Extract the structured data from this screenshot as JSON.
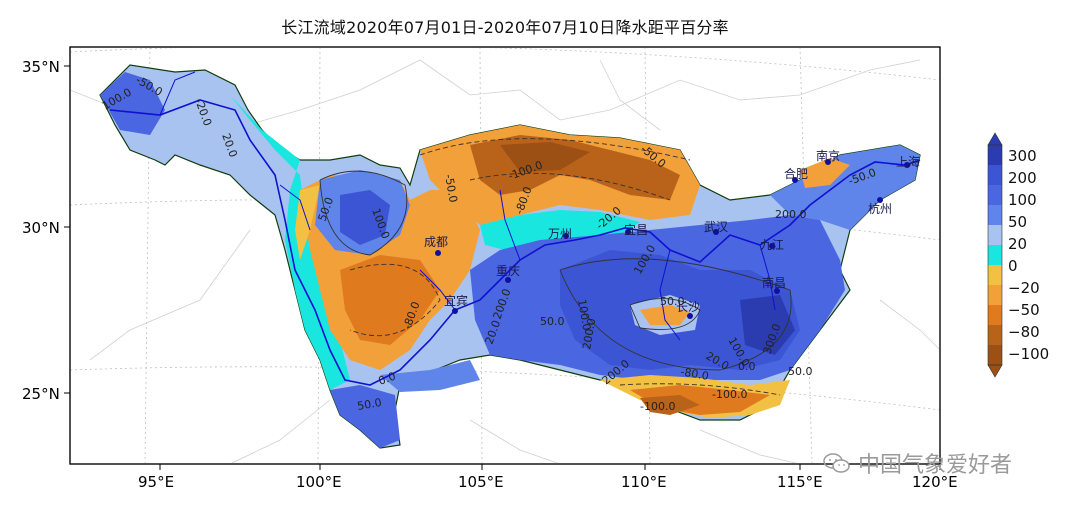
{
  "title": "长江流域2020年07月01日-2020年07月10日降水距平百分率",
  "latitude_labels": [
    "35°N",
    "30°N",
    "25°N"
  ],
  "longitude_labels": [
    "95°E",
    "100°E",
    "105°E",
    "110°E",
    "115°E",
    "120°E"
  ],
  "colorbar": {
    "levels": [
      "300",
      "200",
      "100",
      "50",
      "20",
      "0",
      "−20",
      "−50",
      "−80",
      "−100"
    ],
    "colors": [
      "#2b3bb0",
      "#3c55d4",
      "#4a66e0",
      "#5f84ea",
      "#a9c3f0",
      "#19e6df",
      "#f2c042",
      "#f2a03a",
      "#e07a1f",
      "#b8621a",
      "#9c5014"
    ]
  },
  "cities": [
    {
      "name": "成都"
    },
    {
      "name": "宜宾"
    },
    {
      "name": "重庆"
    },
    {
      "name": "万州"
    },
    {
      "name": "宜昌"
    },
    {
      "name": "武汉"
    },
    {
      "name": "九江"
    },
    {
      "name": "南昌"
    },
    {
      "name": "长沙"
    },
    {
      "name": "合肥"
    },
    {
      "name": "南京"
    },
    {
      "name": "杭州"
    },
    {
      "name": "上海"
    }
  ],
  "contour_labels": [
    "100.0",
    "-50.0",
    "-20.0",
    "20.0",
    "50.0",
    "100.0",
    "-50.0",
    "-100.0",
    "-80.0",
    "-50.0",
    "-20.0",
    "20.0",
    "50.0",
    "100.0",
    "200.0",
    "-80.0",
    "200.0",
    "100.0",
    "50.0",
    "200.0",
    "100.0",
    "0.0",
    "20.0",
    "-80.0",
    "-100.0",
    "50.0",
    "300.0",
    "200.0",
    "50.0",
    "0.0",
    "-100.0",
    "-50.0"
  ],
  "watermark": "中国气象爱好者",
  "colors": {
    "frame": "#000000",
    "river": "#1010d0",
    "grid": "#bfbfbf"
  }
}
